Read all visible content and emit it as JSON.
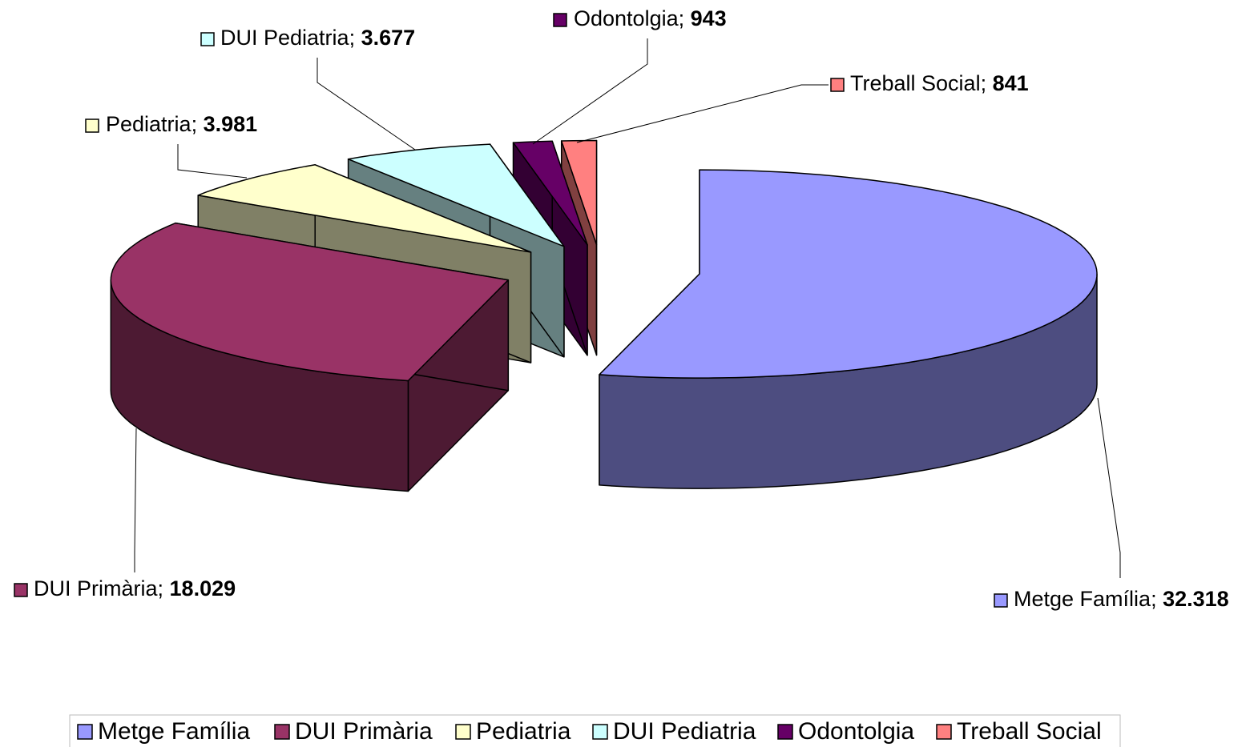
{
  "chart_data": {
    "type": "pie",
    "three_d": true,
    "exploded": true,
    "categories": [
      "Metge Família",
      "DUI Primària",
      "Pediatria",
      "DUI Pediatria",
      "Odontolgia",
      "Treball Social"
    ],
    "values": [
      32318,
      18029,
      3981,
      3677,
      943,
      841
    ],
    "value_labels": [
      "32.318",
      "18.029",
      "3.981",
      "3.677",
      "943",
      "841"
    ],
    "colors": [
      "#9999ff",
      "#993366",
      "#ffffcc",
      "#ccffff",
      "#660066",
      "#ff8080"
    ],
    "legend": "bottom"
  }
}
